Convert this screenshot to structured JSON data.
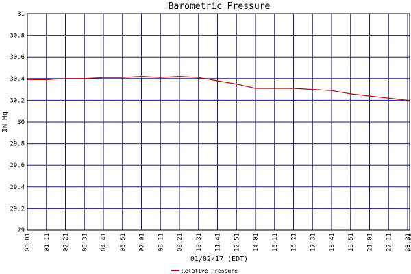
{
  "chart_data": {
    "type": "line",
    "title": "Barometric Pressure",
    "xlabel": "01/02/17 (EDT)",
    "ylabel": "IN Hg",
    "ylim": [
      29,
      31
    ],
    "y_ticks": [
      "29",
      "29.2",
      "29.4",
      "29.6",
      "29.8",
      "30",
      "30.2",
      "30.4",
      "30.6",
      "30.8",
      "31"
    ],
    "x_ticks": [
      "00:01",
      "01:11",
      "02:21",
      "03:31",
      "04:41",
      "05:51",
      "07:01",
      "08:11",
      "09:21",
      "10:31",
      "11:41",
      "12:51",
      "14:01",
      "15:11",
      "16:21",
      "17:31",
      "18:41",
      "19:51",
      "21:01",
      "22:11",
      "23:21",
      "23:24"
    ],
    "grid": true,
    "legend_position": "bottom-center",
    "colors": {
      "line": "#b00000",
      "grid": "#1a1a7a",
      "frame": "#000000"
    },
    "x": [
      "00:01",
      "01:11",
      "02:21",
      "03:31",
      "04:41",
      "05:51",
      "07:01",
      "08:11",
      "09:21",
      "10:31",
      "11:41",
      "12:51",
      "14:01",
      "15:11",
      "16:21",
      "17:31",
      "18:41",
      "19:51",
      "21:01",
      "22:11",
      "23:21",
      "23:24"
    ],
    "series": [
      {
        "name": "Relative Pressure",
        "values": [
          30.39,
          30.39,
          30.4,
          30.4,
          30.41,
          30.41,
          30.42,
          30.41,
          30.42,
          30.41,
          30.38,
          30.35,
          30.31,
          30.31,
          30.31,
          30.3,
          30.29,
          30.26,
          30.24,
          30.22,
          30.2,
          30.19
        ]
      }
    ]
  }
}
